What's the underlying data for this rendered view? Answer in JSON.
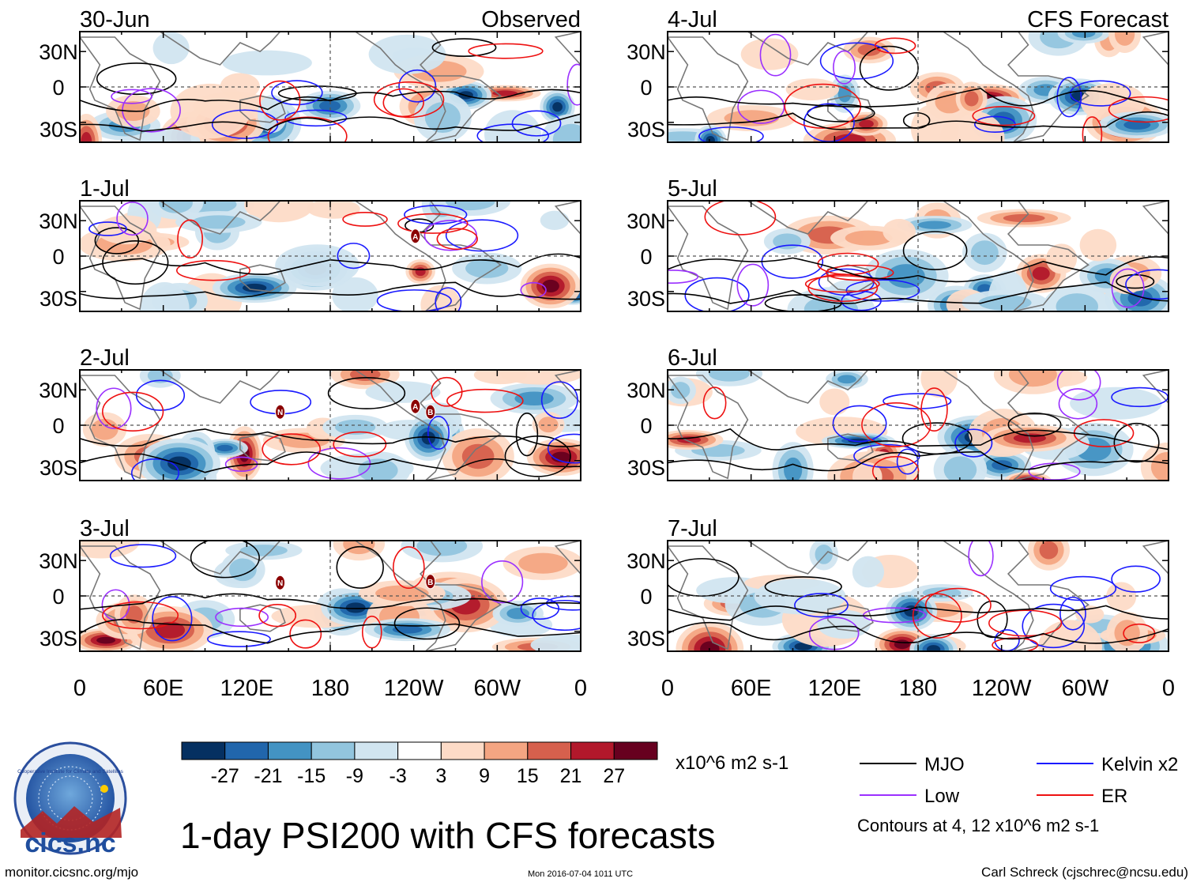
{
  "title": "1-day PSI200 with CFS forecasts",
  "units": "x10^6 m2 s-1",
  "contours_note": "Contours at 4, 12 x10^6 m2 s-1",
  "footer": {
    "left": "monitor.cicsnc.org/mjo",
    "center": "Mon 2016-07-04 1011 UTC",
    "right": "Carl Schreck (cjschrec@ncsu.edu)"
  },
  "logo": {
    "text": "cics.nc",
    "ring_text": "Cooperative Institute for Climate and Satellites"
  },
  "colors": {
    "mjo": "#000000",
    "kelvin": "#1a1aff",
    "low": "#9b30ff",
    "er": "#ee1111",
    "land": "#777777"
  },
  "chart_data": {
    "type": "heatmap",
    "variable": "PSI200 anomaly",
    "columns": [
      {
        "header": "Observed",
        "panels": [
          "30-Jun",
          "1-Jul",
          "2-Jul",
          "3-Jul"
        ]
      },
      {
        "header": "CFS Forecast",
        "panels": [
          "4-Jul",
          "5-Jul",
          "6-Jul",
          "7-Jul"
        ]
      }
    ],
    "x_ticks": [
      "0",
      "60E",
      "120E",
      "180",
      "120W",
      "60W",
      "0"
    ],
    "y_ticks": [
      "30N",
      "0",
      "30S"
    ],
    "colorbar": {
      "levels": [
        "-27",
        "-21",
        "-15",
        "-9",
        "-3",
        "3",
        "9",
        "15",
        "21",
        "27"
      ],
      "colors": [
        "#053061",
        "#2166ac",
        "#4393c3",
        "#92c5de",
        "#d1e5f0",
        "#ffffff",
        "#fddbc7",
        "#f4a582",
        "#d6604d",
        "#b2182b",
        "#67001f"
      ]
    },
    "legend": [
      {
        "name": "MJO",
        "color": "#000000"
      },
      {
        "name": "Kelvin x2",
        "color": "#1a1aff"
      },
      {
        "name": "Low",
        "color": "#9b30ff"
      },
      {
        "name": "ER",
        "color": "#ee1111"
      }
    ],
    "storm_labels": {
      "1-Jul": [
        "A"
      ],
      "2-Jul": [
        "N",
        "A",
        "B"
      ],
      "3-Jul": [
        "N",
        "B"
      ]
    }
  }
}
